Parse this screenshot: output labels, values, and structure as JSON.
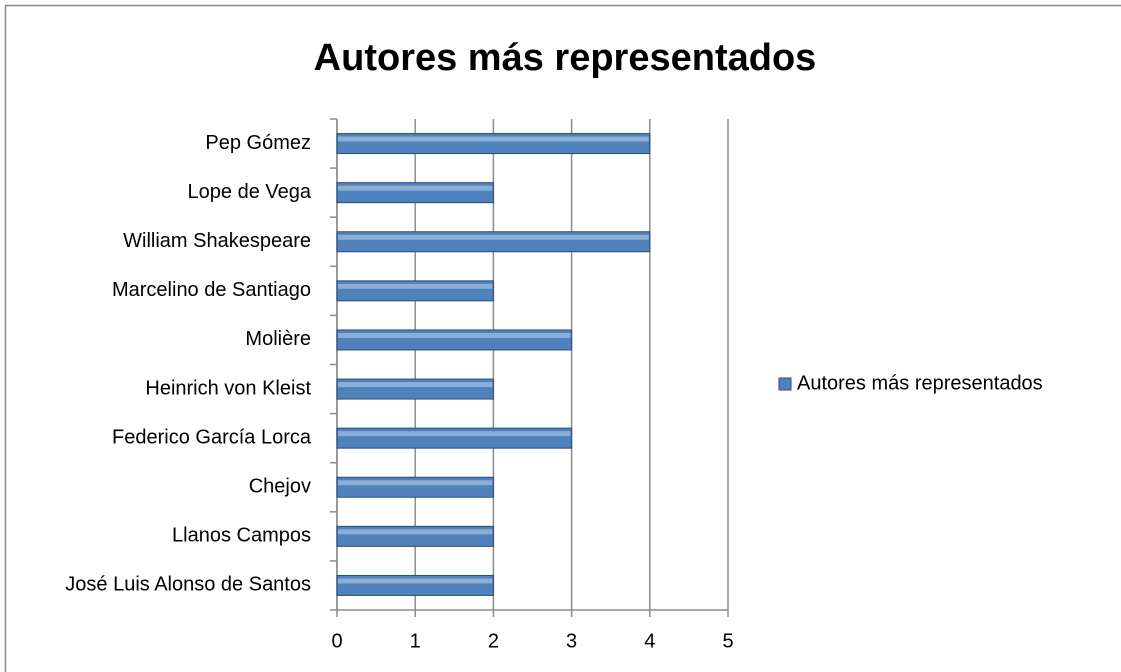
{
  "chart_data": {
    "type": "bar",
    "orientation": "horizontal",
    "title": "Autores más representados",
    "categories": [
      "Pep Gómez",
      "Lope de Vega",
      "William Shakespeare",
      "Marcelino de Santiago",
      "Molière",
      "Heinrich von Kleist",
      "Federico García Lorca",
      "Chejov",
      "Llanos Campos",
      "José Luis Alonso de Santos"
    ],
    "series": [
      {
        "name": "Autores más representados",
        "color": "#4f81bd",
        "values": [
          4,
          2,
          4,
          2,
          3,
          2,
          3,
          2,
          2,
          2
        ]
      }
    ],
    "xlim": [
      0,
      5
    ],
    "xticks": [
      0,
      1,
      2,
      3,
      4,
      5
    ],
    "grid": true,
    "legend": "right"
  }
}
